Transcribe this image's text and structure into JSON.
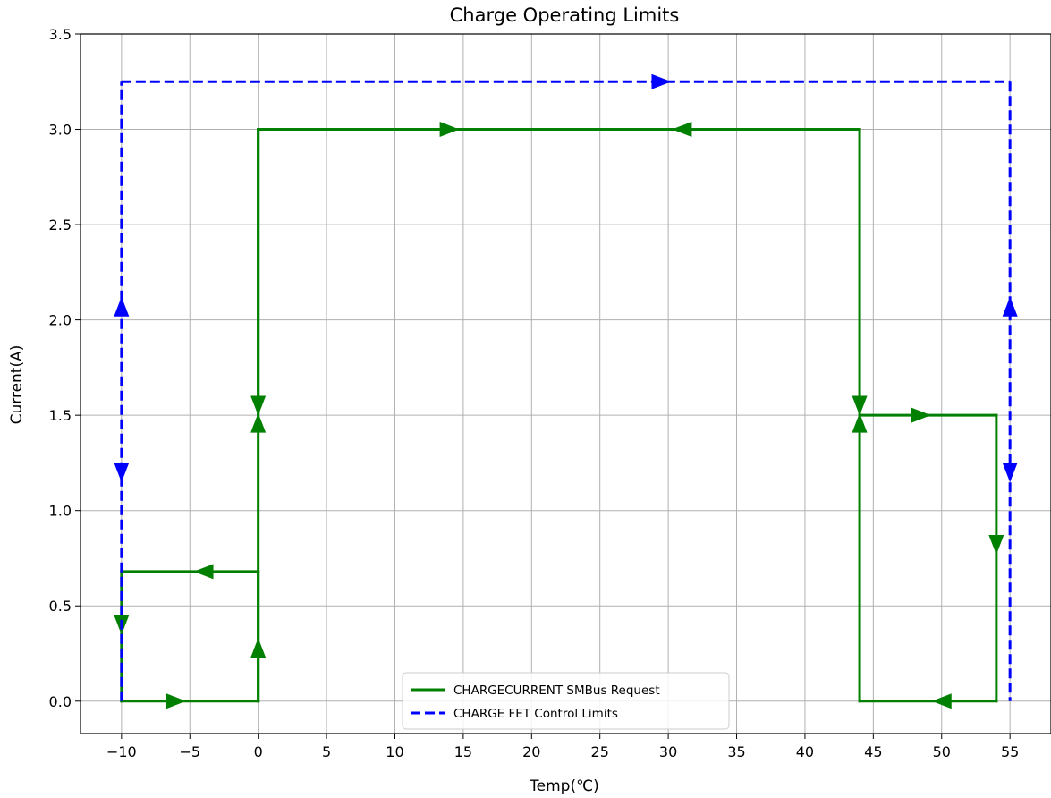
{
  "chart_data": {
    "type": "line",
    "title": "Charge Operating Limits",
    "xlabel": "Temp(℃)",
    "ylabel": "Current(A)",
    "xlim": [
      -13,
      58
    ],
    "ylim": [
      -0.17,
      3.5
    ],
    "grid": true,
    "legend_position": "lower center",
    "x_ticks": [
      {
        "value": -10,
        "label": "−10"
      },
      {
        "value": -5,
        "label": "−5"
      },
      {
        "value": 0,
        "label": "0"
      },
      {
        "value": 5,
        "label": "5"
      },
      {
        "value": 10,
        "label": "10"
      },
      {
        "value": 15,
        "label": "15"
      },
      {
        "value": 20,
        "label": "20"
      },
      {
        "value": 25,
        "label": "25"
      },
      {
        "value": 30,
        "label": "30"
      },
      {
        "value": 35,
        "label": "35"
      },
      {
        "value": 40,
        "label": "40"
      },
      {
        "value": 45,
        "label": "45"
      },
      {
        "value": 50,
        "label": "50"
      },
      {
        "value": 55,
        "label": "55"
      }
    ],
    "y_ticks": [
      {
        "value": 0.0,
        "label": "0.0"
      },
      {
        "value": 0.5,
        "label": "0.5"
      },
      {
        "value": 1.0,
        "label": "1.0"
      },
      {
        "value": 1.5,
        "label": "1.5"
      },
      {
        "value": 2.0,
        "label": "2.0"
      },
      {
        "value": 2.5,
        "label": "2.5"
      },
      {
        "value": 3.0,
        "label": "3.0"
      },
      {
        "value": 3.5,
        "label": "3.5"
      }
    ],
    "series": [
      {
        "name": "CHARGECURRENT SMBus Request",
        "color": "#008000",
        "style": "solid",
        "segments": [
          [
            [
              -10,
              0
            ],
            [
              0,
              0
            ]
          ],
          [
            [
              0,
              0
            ],
            [
              0,
              0.68
            ]
          ],
          [
            [
              0,
              0.68
            ],
            [
              -10,
              0.68
            ]
          ],
          [
            [
              -10,
              0.68
            ],
            [
              -10,
              0
            ]
          ],
          [
            [
              0,
              0
            ],
            [
              0,
              3.0
            ]
          ],
          [
            [
              0,
              3.0
            ],
            [
              0,
              1.5
            ]
          ],
          [
            [
              0,
              3.0
            ],
            [
              44,
              3.0
            ]
          ],
          [
            [
              44,
              3.0
            ],
            [
              44,
              1.5
            ]
          ],
          [
            [
              44,
              0
            ],
            [
              44,
              1.5
            ]
          ],
          [
            [
              44,
              1.5
            ],
            [
              54,
              1.5
            ]
          ],
          [
            [
              54,
              1.5
            ],
            [
              54,
              0
            ]
          ],
          [
            [
              54,
              0
            ],
            [
              44,
              0
            ]
          ]
        ],
        "arrows": [
          {
            "x": -6,
            "y": 0,
            "dir": "right"
          },
          {
            "x": 0,
            "y": 0.28,
            "dir": "up"
          },
          {
            "x": -4,
            "y": 0.68,
            "dir": "left"
          },
          {
            "x": -10,
            "y": 0.4,
            "dir": "down"
          },
          {
            "x": 0,
            "y": 1.46,
            "dir": "up"
          },
          {
            "x": 0,
            "y": 1.55,
            "dir": "down"
          },
          {
            "x": 14,
            "y": 3.0,
            "dir": "right"
          },
          {
            "x": 31,
            "y": 3.0,
            "dir": "left"
          },
          {
            "x": 44,
            "y": 1.55,
            "dir": "down"
          },
          {
            "x": 44,
            "y": 1.46,
            "dir": "up"
          },
          {
            "x": 48.5,
            "y": 1.5,
            "dir": "right"
          },
          {
            "x": 54,
            "y": 0.82,
            "dir": "down"
          },
          {
            "x": 50,
            "y": 0,
            "dir": "left"
          }
        ]
      },
      {
        "name": "CHARGE FET Control Limits",
        "color": "#0000ff",
        "style": "dashed",
        "segments": [
          [
            [
              -10,
              0
            ],
            [
              -10,
              3.25
            ]
          ],
          [
            [
              -10,
              3.25
            ],
            [
              55,
              3.25
            ]
          ],
          [
            [
              55,
              3.25
            ],
            [
              55,
              0
            ]
          ]
        ],
        "arrows": [
          {
            "x": -10,
            "y": 2.07,
            "dir": "up"
          },
          {
            "x": -10,
            "y": 1.2,
            "dir": "down"
          },
          {
            "x": 29.5,
            "y": 3.25,
            "dir": "right"
          },
          {
            "x": 55,
            "y": 2.07,
            "dir": "up"
          },
          {
            "x": 55,
            "y": 1.2,
            "dir": "down"
          }
        ]
      }
    ]
  }
}
